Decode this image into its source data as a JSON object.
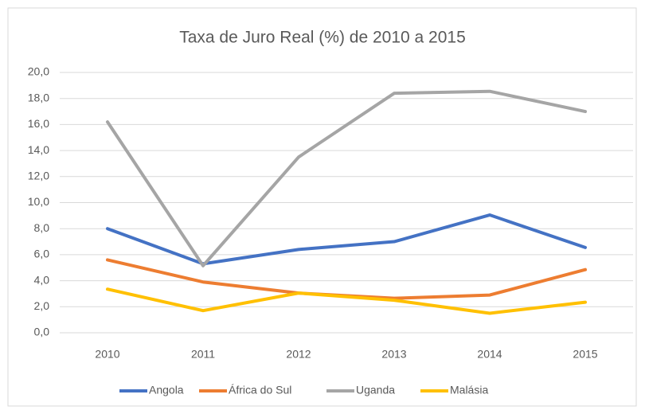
{
  "chart_data": {
    "type": "line",
    "title": "Taxa de Juro Real (%) de 2010 a 2015",
    "categories": [
      "2010",
      "2011",
      "2012",
      "2013",
      "2014",
      "2015"
    ],
    "series": [
      {
        "name": "Angola",
        "color": "#4472c4",
        "values": [
          8.0,
          5.3,
          6.4,
          7.0,
          9.05,
          6.55
        ]
      },
      {
        "name": "África do Sul",
        "color": "#ed7d31",
        "values": [
          5.6,
          3.9,
          3.05,
          2.65,
          2.9,
          4.85
        ]
      },
      {
        "name": "Uganda",
        "color": "#a5a5a5",
        "values": [
          16.2,
          5.15,
          13.5,
          18.4,
          18.55,
          17.0
        ]
      },
      {
        "name": "Malásia",
        "color": "#ffc000",
        "values": [
          3.35,
          1.7,
          3.05,
          2.5,
          1.5,
          2.35
        ]
      }
    ],
    "ylim": [
      0,
      20
    ],
    "yticks": [
      {
        "value": 0,
        "label": "0,0"
      },
      {
        "value": 2,
        "label": "2,0"
      },
      {
        "value": 4,
        "label": "4,0"
      },
      {
        "value": 6,
        "label": "6,0"
      },
      {
        "value": 8,
        "label": "8,0"
      },
      {
        "value": 10,
        "label": "10,0"
      },
      {
        "value": 12,
        "label": "12,0"
      },
      {
        "value": 14,
        "label": "14,0"
      },
      {
        "value": 16,
        "label": "16,0"
      },
      {
        "value": 18,
        "label": "18,0"
      },
      {
        "value": 20,
        "label": "20,0"
      }
    ],
    "grid": true,
    "legend": "bottom"
  }
}
